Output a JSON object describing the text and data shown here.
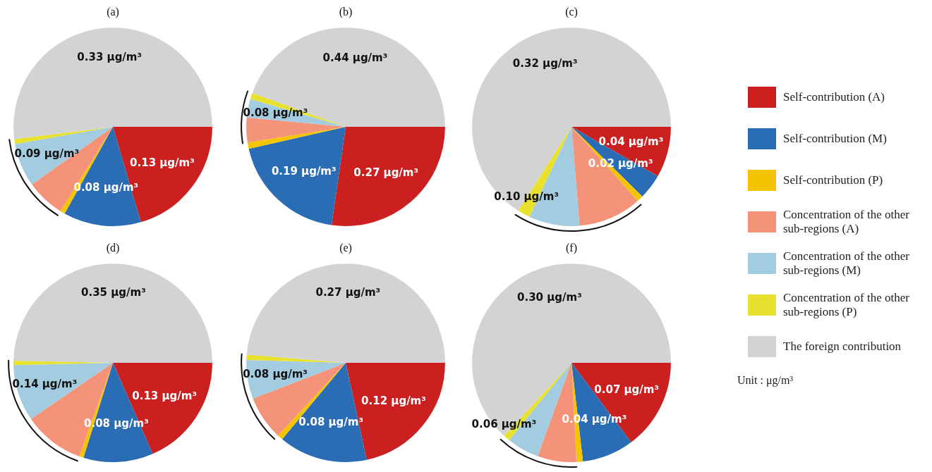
{
  "chart_data": [
    {
      "type": "pie",
      "title": "(a)",
      "categories": [
        "Self-contribution (A)",
        "Self-contribution (M)",
        "Self-contribution (P)",
        "Concentration of the other sub-regions (A)",
        "Concentration of the other sub-regions (M)",
        "Concentration of the other sub-regions (P)",
        "The foreign contribution"
      ],
      "values": [
        0.13,
        0.08,
        0.005,
        0.04,
        0.045,
        0.005,
        0.33
      ],
      "value_labels": [
        "0.13 μg/m³",
        "0.08 μg/m³",
        null,
        null,
        null,
        null,
        "0.33 μg/m³"
      ],
      "colors": [
        "#cc2020",
        "#2a6db5",
        "#f5c400",
        "#f4937a",
        "#a3cce0",
        "#e8e22e",
        "#d3d3d3"
      ],
      "legend": "right",
      "annotations": [
        "0.09 μg/m³",
        "Unit : μg/m³"
      ]
    },
    {
      "type": "pie",
      "title": "(b)",
      "categories": [
        null,
        null,
        null,
        null,
        null,
        null,
        null
      ],
      "values": [
        0.27,
        0.19,
        0.01,
        0.04,
        0.03,
        0.01,
        0.44
      ],
      "value_labels": [
        "0.27 μg/m³",
        "0.19 μg/m³",
        null,
        null,
        null,
        null,
        "0.44 μg/m³"
      ],
      "colors": [
        "#cc2020",
        "#2a6db5",
        "#f5c400",
        "#f4937a",
        "#a3cce0",
        "#e8e22e",
        "#d3d3d3"
      ],
      "annotations": [
        "0.08 μg/m³"
      ]
    },
    {
      "type": "pie",
      "title": "(c)",
      "categories": [
        null,
        null,
        null,
        null,
        null,
        null,
        null
      ],
      "values": [
        0.04,
        0.02,
        0.005,
        0.05,
        0.04,
        0.01,
        0.32
      ],
      "value_labels": [
        "0.04 μg/m³",
        "0.02 μg/m³",
        null,
        null,
        null,
        null,
        "0.32 μg/m³"
      ],
      "colors": [
        "#cc2020",
        "#2a6db5",
        "#f5c400",
        "#f4937a",
        "#a3cce0",
        "#e8e22e",
        "#d3d3d3"
      ],
      "annotations": [
        "0.10 μg/m³"
      ]
    },
    {
      "type": "pie",
      "title": "(d)",
      "categories": [
        null,
        null,
        null,
        null,
        null,
        null,
        null
      ],
      "values": [
        0.13,
        0.08,
        0.005,
        0.07,
        0.065,
        0.005,
        0.35
      ],
      "value_labels": [
        "0.13 μg/m³",
        "0.08 μg/m³",
        null,
        null,
        null,
        null,
        "0.35 μg/m³"
      ],
      "colors": [
        "#cc2020",
        "#2a6db5",
        "#f5c400",
        "#f4937a",
        "#a3cce0",
        "#e8e22e",
        "#d3d3d3"
      ],
      "annotations": [
        "0.14 μg/m³"
      ]
    },
    {
      "type": "pie",
      "title": "(e)",
      "categories": [
        null,
        null,
        null,
        null,
        null,
        null,
        null
      ],
      "values": [
        0.12,
        0.08,
        0.005,
        0.04,
        0.035,
        0.005,
        0.27
      ],
      "value_labels": [
        "0.12 μg/m³",
        "0.08 μg/m³",
        null,
        null,
        null,
        null,
        "0.27 μg/m³"
      ],
      "colors": [
        "#cc2020",
        "#2a6db5",
        "#f5c400",
        "#f4937a",
        "#a3cce0",
        "#e8e22e",
        "#d3d3d3"
      ],
      "annotations": [
        "0.08 μg/m³"
      ]
    },
    {
      "type": "pie",
      "title": "(f)",
      "categories": [
        null,
        null,
        null,
        null,
        null,
        null,
        null
      ],
      "values": [
        0.07,
        0.04,
        0.005,
        0.03,
        0.025,
        0.005,
        0.3
      ],
      "value_labels": [
        "0.07 μg/m³",
        "0.04 μg/m³",
        null,
        null,
        null,
        null,
        "0.30 μg/m³"
      ],
      "colors": [
        "#cc2020",
        "#2a6db5",
        "#f5c400",
        "#f4937a",
        "#a3cce0",
        "#e8e22e",
        "#d3d3d3"
      ],
      "annotations": [
        "0.06 μg/m³"
      ]
    }
  ]
}
